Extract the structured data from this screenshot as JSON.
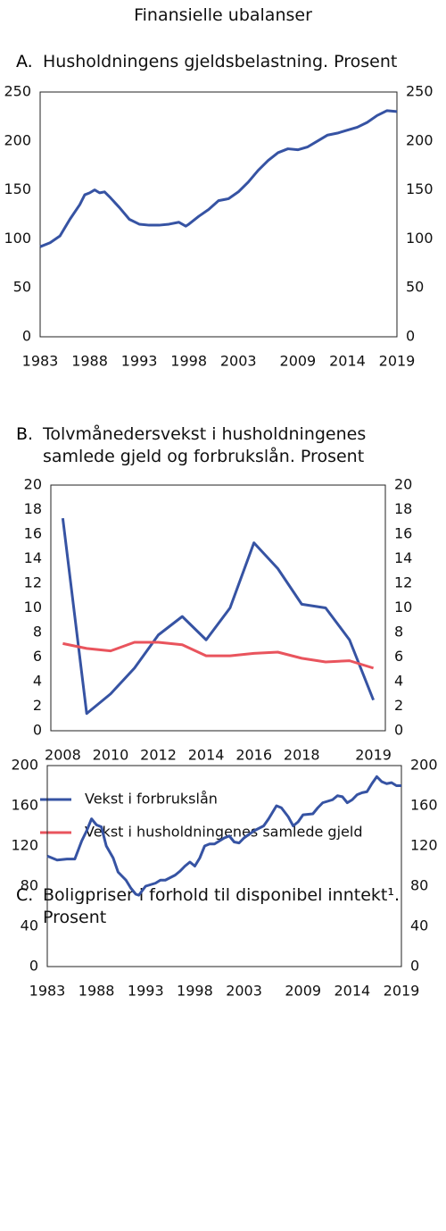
{
  "title": "Finansielle ubalanser",
  "chart_data": [
    {
      "type": "line",
      "label": "A.",
      "title": "Husholdningens gjeldsbelastning. Prosent",
      "x": [
        1983,
        1984,
        1985,
        1986,
        1987,
        1987.5,
        1988,
        1988.5,
        1989,
        1989.5,
        1990,
        1991,
        1992,
        1993,
        1994,
        1995,
        1996,
        1997,
        1997.7,
        1998,
        1999,
        2000,
        2001,
        2002,
        2003,
        2004,
        2005,
        2006,
        2007,
        2008,
        2009,
        2010,
        2011,
        2012,
        2013,
        2014,
        2015,
        2016,
        2017,
        2018,
        2019
      ],
      "series": [
        {
          "color": "#3653a3",
          "values": [
            92,
            96,
            103,
            120,
            135,
            145,
            147,
            150,
            147,
            148,
            143,
            132,
            120,
            115,
            114,
            114,
            115,
            117,
            113,
            115,
            123,
            130,
            139,
            141,
            148,
            158,
            170,
            180,
            188,
            192,
            191,
            194,
            200,
            206,
            208,
            211,
            214,
            219,
            226,
            231,
            230
          ]
        }
      ],
      "xlim": [
        1983,
        2019
      ],
      "xticks": [
        1983,
        1988,
        1993,
        1998,
        2003,
        2009,
        2014,
        2019
      ],
      "ylim": [
        0,
        250
      ],
      "yticks": [
        0,
        50,
        100,
        150,
        200,
        250
      ],
      "mirror_y": true,
      "grid": false
    },
    {
      "type": "line",
      "label": "B.",
      "title": "Tolvmånedersvekst i husholdningenes samlede gjeld og forbrukslån. Prosent",
      "categories": [
        "2008",
        null,
        "2010",
        null,
        "2012",
        null,
        "2014",
        null,
        "2016",
        null,
        "2018",
        null,
        null,
        "2019"
      ],
      "series": [
        {
          "name": "Vekst i forbrukslån",
          "color": "#3653a3",
          "values": [
            17.3,
            1.4,
            3.0,
            5.1,
            7.8,
            9.3,
            7.4,
            10.0,
            15.3,
            13.2,
            10.3,
            10.0,
            7.4,
            2.5
          ]
        },
        {
          "name": "Vekst i husholdningenes samlede gjeld",
          "color": "#e9545d",
          "values": [
            7.1,
            6.7,
            6.5,
            7.2,
            7.2,
            7.0,
            6.1,
            6.1,
            6.3,
            6.4,
            5.9,
            5.6,
            5.7,
            5.1
          ]
        }
      ],
      "ylim": [
        0,
        20
      ],
      "yticks": [
        0,
        2,
        4,
        6,
        8,
        10,
        12,
        14,
        16,
        18,
        20
      ],
      "mirror_y": true,
      "grid": false,
      "legend": "bottom"
    },
    {
      "type": "line",
      "label": "C.",
      "title": "Boligpriser i forhold til disponibel inntekt¹. Prosent",
      "x": [
        1983,
        1984,
        1985,
        1985.8,
        1986.5,
        1987,
        1987.5,
        1988,
        1988.5,
        1989,
        1989.7,
        1990.2,
        1991,
        1991.5,
        1992,
        1992.3,
        1993,
        1994,
        1994.5,
        1995,
        1996,
        1996.5,
        1997,
        1997.5,
        1998,
        1998.5,
        1999,
        1999.5,
        2000,
        2001,
        2001.5,
        2002,
        2002.5,
        2003,
        2004,
        2005,
        2005.5,
        2006.3,
        2006.8,
        2007.5,
        2008,
        2008.5,
        2009,
        2010,
        2010.5,
        2011,
        2012,
        2012.5,
        2013,
        2013.5,
        2014,
        2014.5,
        2015,
        2015.5,
        2016,
        2016.5,
        2017,
        2017.5,
        2018,
        2018.5,
        2019
      ],
      "series": [
        {
          "color": "#3653a3",
          "values": [
            110,
            106,
            107,
            107,
            125,
            135,
            147,
            141,
            139,
            120,
            108,
            94,
            86,
            78,
            72,
            71,
            80,
            83,
            86,
            86,
            91,
            95,
            100,
            104,
            100,
            108,
            120,
            122,
            122,
            128,
            130,
            124,
            123,
            128,
            135,
            140,
            147,
            160,
            158,
            149,
            140,
            144,
            151,
            152,
            158,
            163,
            166,
            170,
            169,
            163,
            166,
            171,
            173,
            174,
            182,
            189,
            184,
            182,
            183,
            180,
            180
          ]
        }
      ],
      "xlim": [
        1983,
        2019
      ],
      "xticks": [
        1983,
        1988,
        1993,
        1998,
        2003,
        2009,
        2014,
        2019
      ],
      "ylim": [
        0,
        200
      ],
      "yticks": [
        0,
        40,
        80,
        120,
        160,
        200
      ],
      "mirror_y": true,
      "grid": false
    }
  ]
}
